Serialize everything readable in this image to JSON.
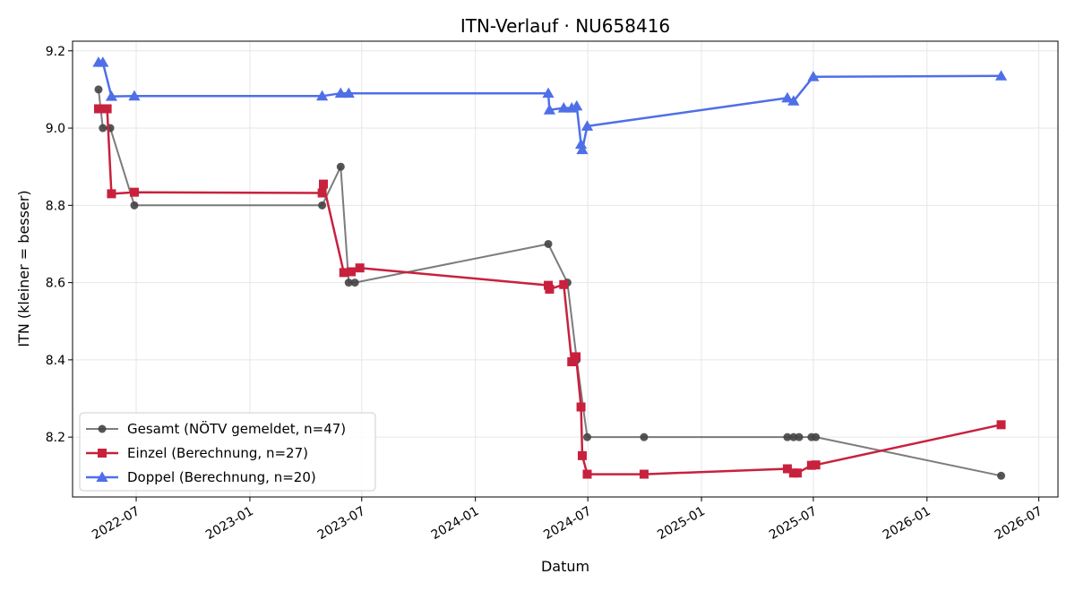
{
  "chart_data": {
    "type": "line",
    "title": "ITN-Verlauf · NU658416",
    "xlabel": "Datum",
    "ylabel": "ITN  (kleiner = besser)",
    "xlim": [
      "2022-03-20",
      "2026-08-01"
    ],
    "ylim": [
      8.045,
      9.225
    ],
    "x_ticks": [
      "2022-07",
      "2023-01",
      "2023-07",
      "2024-01",
      "2024-07",
      "2025-01",
      "2025-07",
      "2026-01",
      "2026-07"
    ],
    "y_ticks": [
      8.2,
      8.4,
      8.6,
      8.8,
      9.0,
      9.2
    ],
    "grid": true,
    "legend_position": "lower-left",
    "series": [
      {
        "name": "Gesamt (NÖTV gemeldet, n=47)",
        "color": "#444444",
        "marker": "circle",
        "points": [
          [
            "2022-05-01",
            9.1
          ],
          [
            "2022-05-08",
            9.0
          ],
          [
            "2022-05-20",
            9.0
          ],
          [
            "2022-06-28",
            8.8
          ],
          [
            "2023-04-28",
            8.8
          ],
          [
            "2023-05-28",
            8.9
          ],
          [
            "2023-06-10",
            8.6
          ],
          [
            "2023-06-20",
            8.6
          ],
          [
            "2024-04-28",
            8.7
          ],
          [
            "2024-05-29",
            8.6
          ],
          [
            "2024-06-13",
            8.4
          ],
          [
            "2024-06-30",
            8.2
          ],
          [
            "2024-09-30",
            8.2
          ],
          [
            "2025-05-20",
            8.2
          ],
          [
            "2025-05-30",
            8.2
          ],
          [
            "2025-06-08",
            8.2
          ],
          [
            "2025-06-28",
            8.2
          ],
          [
            "2025-07-05",
            8.2
          ],
          [
            "2026-05-01",
            8.1
          ]
        ]
      },
      {
        "name": "Einzel (Berechnung, n=27)",
        "color": "#c8213d",
        "marker": "square",
        "points": [
          [
            "2022-05-01",
            9.05
          ],
          [
            "2022-05-08",
            9.05
          ],
          [
            "2022-05-15",
            9.05
          ],
          [
            "2022-05-22",
            8.83
          ],
          [
            "2022-06-28",
            8.834
          ],
          [
            "2023-04-28",
            8.832
          ],
          [
            "2023-04-30",
            8.855
          ],
          [
            "2023-06-02",
            8.626
          ],
          [
            "2023-06-14",
            8.628
          ],
          [
            "2023-06-28",
            8.638
          ],
          [
            "2024-04-28",
            8.593
          ],
          [
            "2024-04-30",
            8.583
          ],
          [
            "2024-05-23",
            8.595
          ],
          [
            "2024-06-05",
            8.395
          ],
          [
            "2024-06-12",
            8.408
          ],
          [
            "2024-06-20",
            8.278
          ],
          [
            "2024-06-22",
            8.152
          ],
          [
            "2024-06-30",
            8.104
          ],
          [
            "2024-09-30",
            8.104
          ],
          [
            "2025-05-20",
            8.118
          ],
          [
            "2025-05-30",
            8.107
          ],
          [
            "2025-06-05",
            8.107
          ],
          [
            "2025-06-28",
            8.127
          ],
          [
            "2025-07-05",
            8.128
          ],
          [
            "2026-05-01",
            8.232
          ]
        ]
      },
      {
        "name": "Doppel (Berechnung, n=20)",
        "color": "#4f6fe8",
        "marker": "triangle",
        "points": [
          [
            "2022-05-01",
            9.17
          ],
          [
            "2022-05-08",
            9.17
          ],
          [
            "2022-05-22",
            9.082
          ],
          [
            "2022-06-28",
            9.083
          ],
          [
            "2023-04-28",
            9.083
          ],
          [
            "2023-05-28",
            9.09
          ],
          [
            "2023-06-10",
            9.09
          ],
          [
            "2024-04-28",
            9.09
          ],
          [
            "2024-04-30",
            9.047
          ],
          [
            "2024-05-23",
            9.052
          ],
          [
            "2024-06-05",
            9.052
          ],
          [
            "2024-06-13",
            9.057
          ],
          [
            "2024-06-20",
            8.958
          ],
          [
            "2024-06-22",
            8.944
          ],
          [
            "2024-06-30",
            9.005
          ],
          [
            "2025-05-20",
            9.078
          ],
          [
            "2025-05-30",
            9.07
          ],
          [
            "2025-07-01",
            9.133
          ],
          [
            "2026-05-01",
            9.135
          ]
        ]
      }
    ]
  }
}
